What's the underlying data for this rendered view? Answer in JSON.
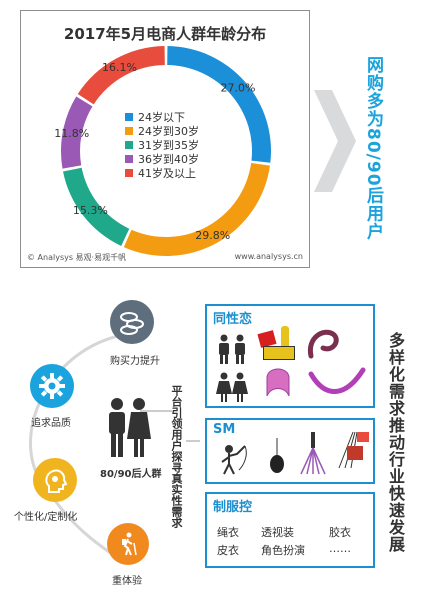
{
  "chart": {
    "title": "2017年5月电商人群年龄分布",
    "footer_left": "© Analysys 易观·易观千帆",
    "footer_right": "www.analysys.cn"
  },
  "chart_data": {
    "type": "pie",
    "title": "2017年5月电商人群年龄分布",
    "donut": true,
    "legend_position": "center",
    "categories": [
      "24岁以下",
      "24岁到30岁",
      "31岁到35岁",
      "36岁到40岁",
      "41岁及以上"
    ],
    "values": [
      27.0,
      29.8,
      15.3,
      11.8,
      16.1
    ],
    "labels": [
      "27.0%",
      "29.8%",
      "15.3%",
      "11.8%",
      "16.1%"
    ],
    "colors": [
      "#1b8fd8",
      "#f39c12",
      "#1fa88a",
      "#9b59b6",
      "#e74c3c"
    ]
  },
  "headline": "网购多为80/90后用户",
  "left_diagram": {
    "nodes": [
      {
        "label": "购买力提升",
        "icon": "coins-icon",
        "color": "#5f6e7c"
      },
      {
        "label": "追求品质",
        "icon": "gear-icon",
        "color": "#1aa3dd"
      },
      {
        "label": "个性化/定制化",
        "icon": "head-lightbulb-icon",
        "color": "#f0b51e"
      },
      {
        "label": "重体验",
        "icon": "hiker-icon",
        "color": "#f0891e"
      }
    ],
    "center_label": "80/90后人群",
    "center_icon": "couple-icon"
  },
  "bridge_text": "平台引领用户探寻真实性需求",
  "categories": [
    {
      "title": "同性恋"
    },
    {
      "title": "SM"
    },
    {
      "title": "制服控",
      "items": [
        "绳衣",
        "透视装",
        "胶衣",
        "皮衣",
        "角色扮演",
        "……"
      ]
    }
  ],
  "tagline": "多样化需求推动行业快速发展"
}
